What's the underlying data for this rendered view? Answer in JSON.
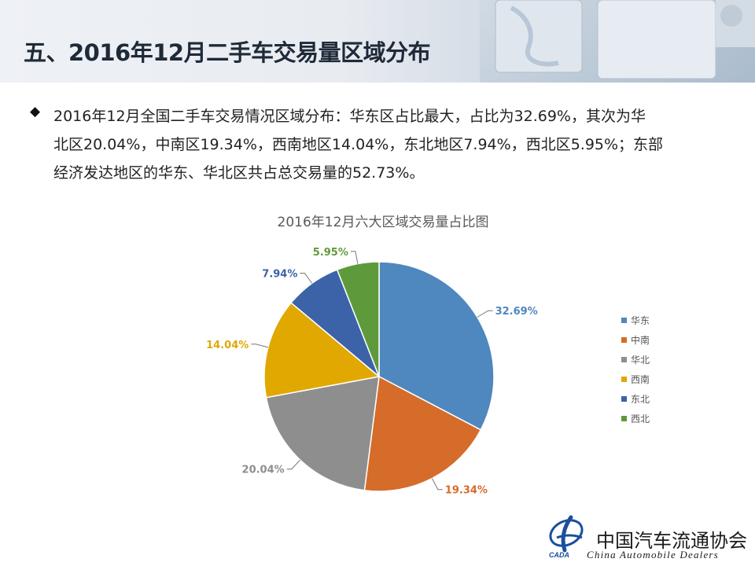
{
  "header": {
    "title": "五、2016年12月二手车交易量区域分布"
  },
  "summary": {
    "bullet_icon": "diamond-bullet-icon",
    "lines": [
      "2016年12月全国二手车交易情况区域分布：华东区占比最大，占比为32.69%，其次为华",
      "北区20.04%，中南区19.34%，西南地区14.04%，东北地区7.94%，西北区5.95%；东部",
      "经济发达地区的华东、华北区共占总交易量的52.73%。"
    ]
  },
  "chart_data": {
    "type": "pie",
    "title": "2016年12月六大区域交易量占比图",
    "categories": [
      "华东",
      "中南",
      "华北",
      "西南",
      "东北",
      "西北"
    ],
    "values": [
      32.69,
      19.34,
      20.04,
      14.04,
      7.94,
      5.95
    ],
    "data_labels": [
      "32.69%",
      "19.34%",
      "20.04%",
      "14.04%",
      "7.94%",
      "5.95%"
    ],
    "colors": [
      "#4f87bf",
      "#d56c2a",
      "#8e8e8e",
      "#e0a800",
      "#3c62a8",
      "#5e9a3c"
    ],
    "legend_position": "right"
  },
  "footer": {
    "org_name_cn": "中国汽车流通协会",
    "org_name_en": "China  Automobile Dealers",
    "logo_abbr": "CADA"
  }
}
